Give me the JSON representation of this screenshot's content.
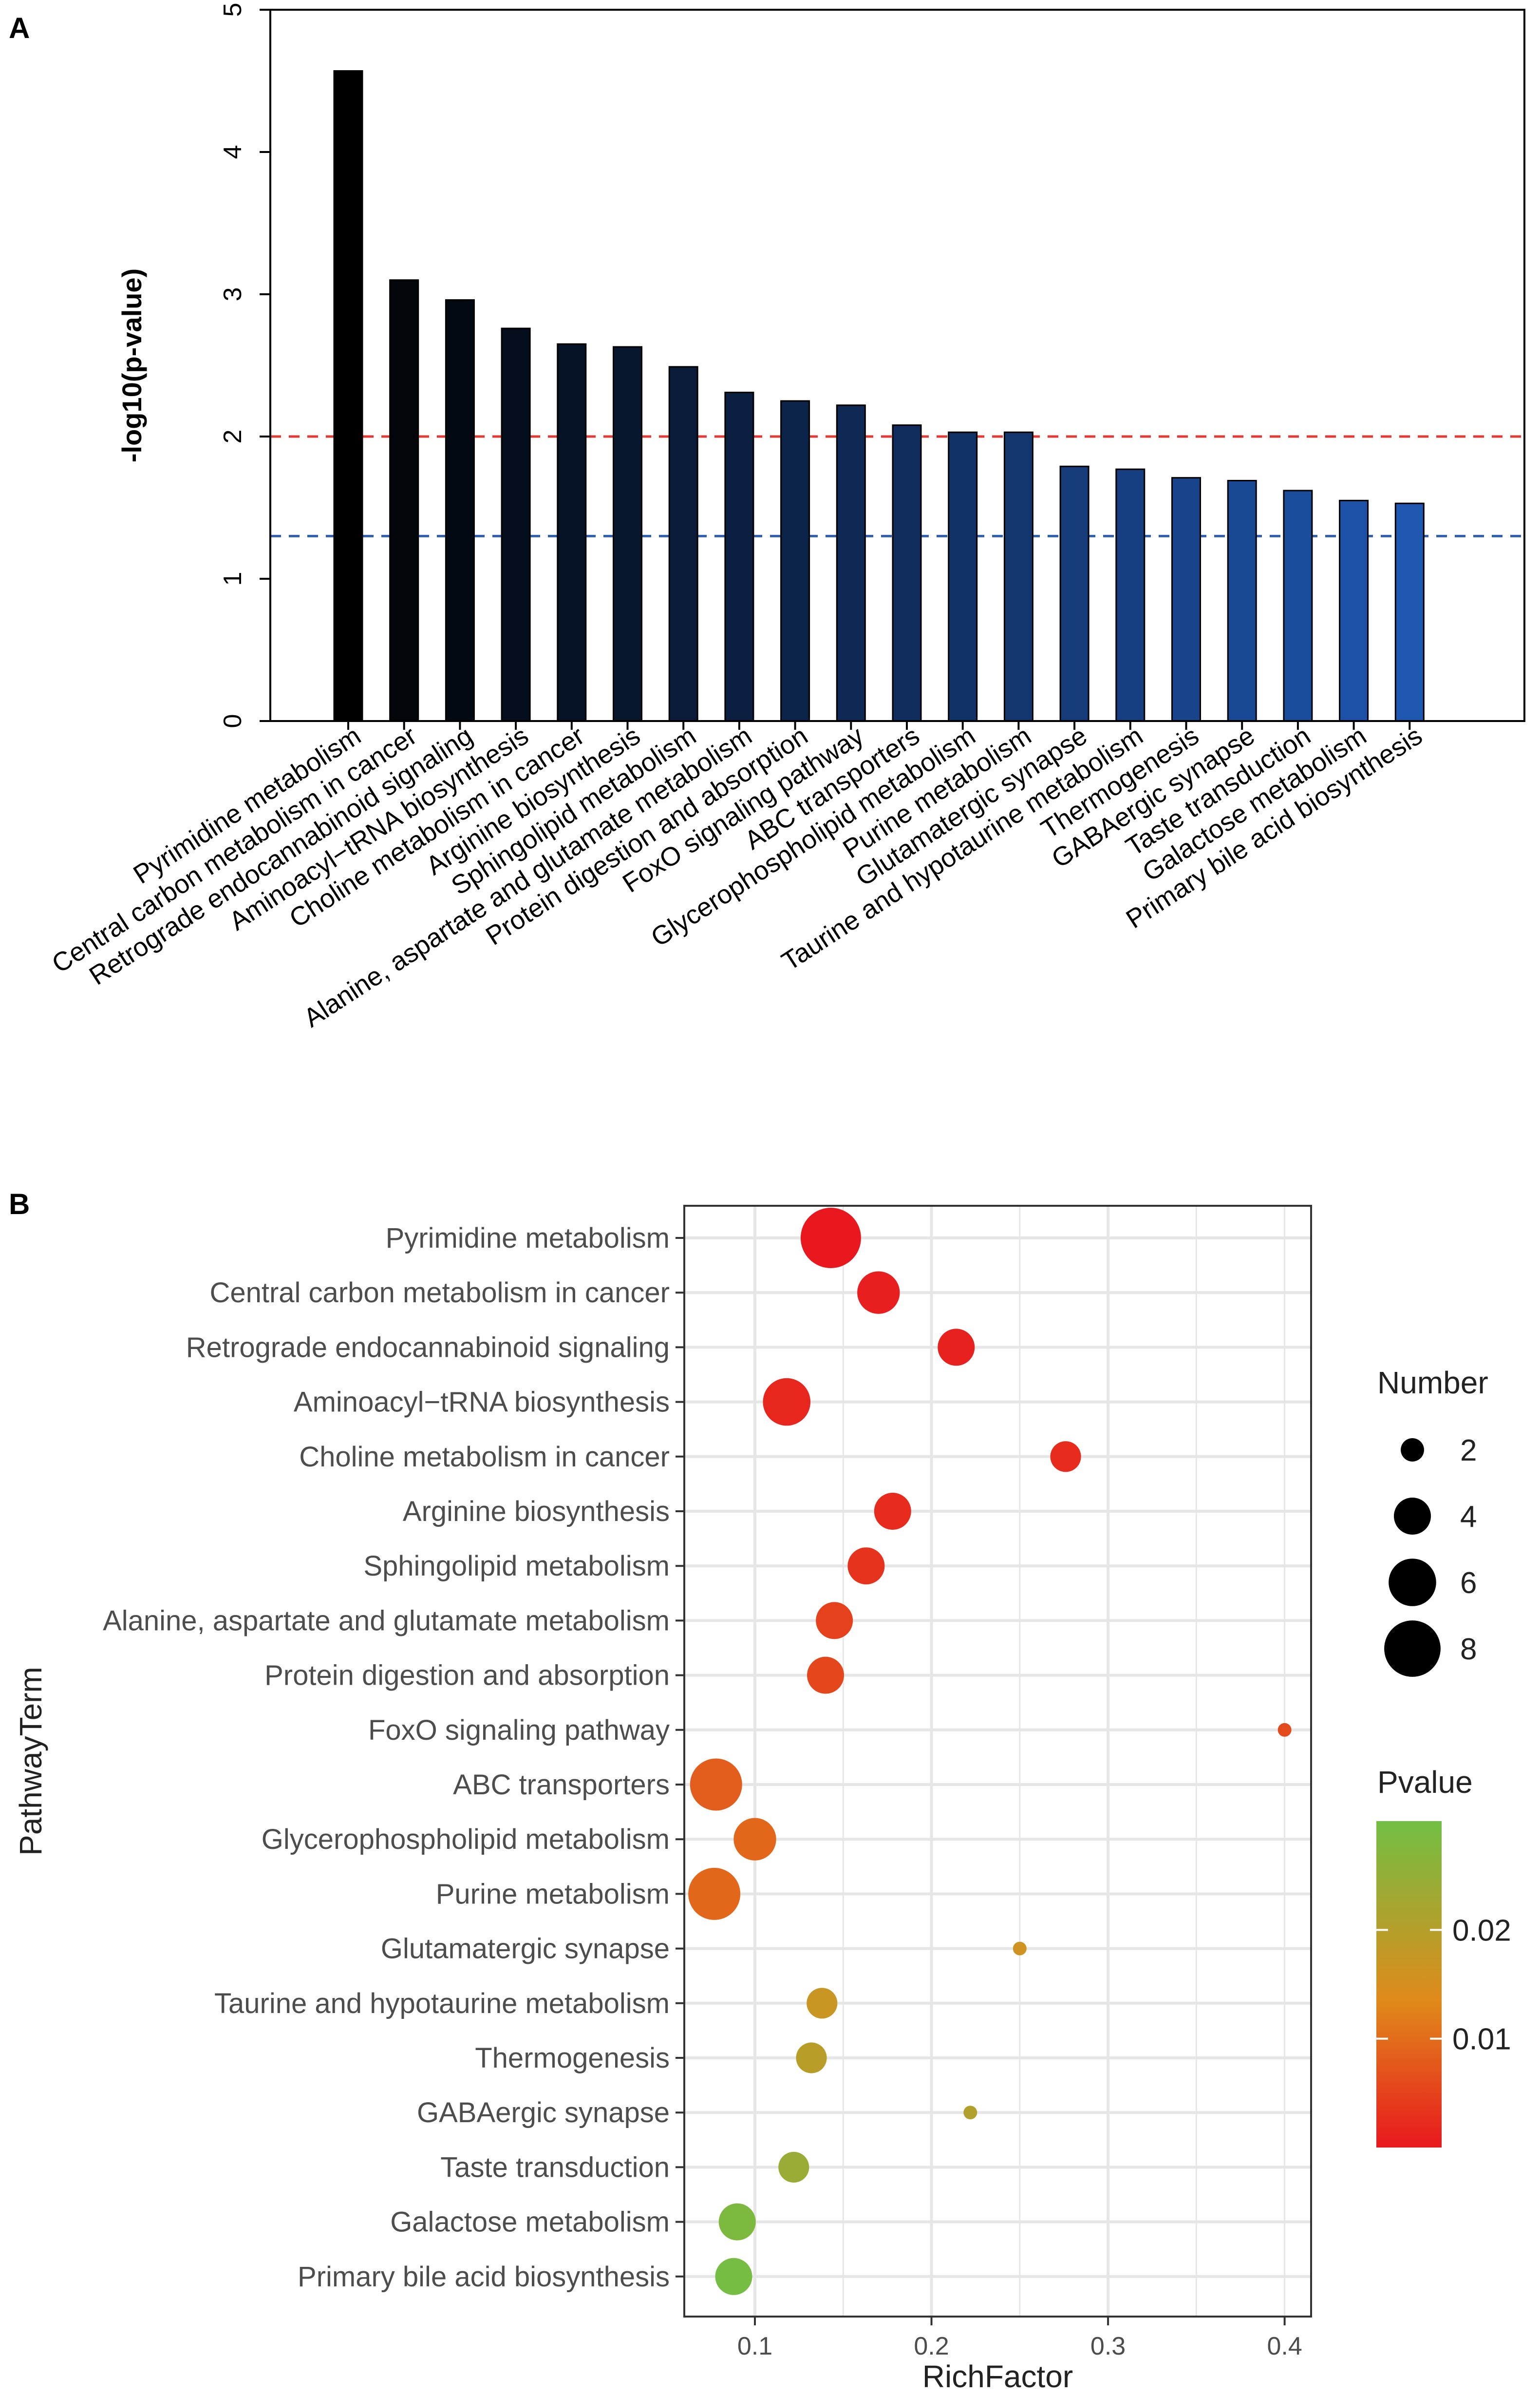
{
  "panels": {
    "a_label": "A",
    "b_label": "B"
  },
  "colors": {
    "bar_dark": "#000000",
    "bar_light": "#1e56b0",
    "ref_red": "#e53935",
    "ref_blue": "#2f5fb3",
    "grid": "#e6e6e6",
    "pvalue_low": "#e8181e",
    "pvalue_mid": "#e08a1a",
    "pvalue_high": "#72bf44"
  },
  "chart_data": [
    {
      "type": "bar",
      "title": "",
      "xlabel": "",
      "ylabel": "-log10(p-value)",
      "ylim": [
        0,
        5
      ],
      "yticks": [
        0,
        1,
        2,
        3,
        4,
        5
      ],
      "reference_lines": [
        {
          "y": 2.0,
          "color": "red",
          "style": "dashed"
        },
        {
          "y": 1.3,
          "color": "blue",
          "style": "dashed"
        }
      ],
      "categories": [
        "Pyrimidine metabolism",
        "Central carbon metabolism in cancer",
        "Retrograde endocannabinoid signaling",
        "Aminoacyl−tRNA biosynthesis",
        "Choline metabolism in cancer",
        "Arginine biosynthesis",
        "Sphingolipid metabolism",
        "Alanine, aspartate and glutamate metabolism",
        "Protein digestion and absorption",
        "FoxO signaling pathway",
        "ABC transporters",
        "Glycerophospholipid metabolism",
        "Purine metabolism",
        "Glutamatergic synapse",
        "Taurine and hypotaurine metabolism",
        "Thermogenesis",
        "GABAergic synapse",
        "Taste transduction",
        "Galactose metabolism",
        "Primary bile acid biosynthesis"
      ],
      "values": [
        4.57,
        3.1,
        2.96,
        2.76,
        2.65,
        2.63,
        2.49,
        2.31,
        2.25,
        2.22,
        2.08,
        2.03,
        2.03,
        1.79,
        1.77,
        1.71,
        1.69,
        1.62,
        1.55,
        1.53
      ]
    },
    {
      "type": "scatter",
      "title": "",
      "xlabel": "RichFactor",
      "ylabel": "PathwayTerm",
      "xlim": [
        0.06,
        0.415
      ],
      "xticks": [
        0.1,
        0.2,
        0.3,
        0.4
      ],
      "xtick_labels": [
        "0.1",
        "0.2",
        "0.3",
        "0.4"
      ],
      "categories": [
        "Pyrimidine metabolism",
        "Central carbon metabolism in cancer",
        "Retrograde endocannabinoid signaling",
        "Aminoacyl−tRNA biosynthesis",
        "Choline metabolism in cancer",
        "Arginine biosynthesis",
        "Sphingolipid metabolism",
        "Alanine, aspartate and glutamate metabolism",
        "Protein digestion and absorption",
        "FoxO signaling pathway",
        "ABC transporters",
        "Glycerophospholipid metabolism",
        "Purine metabolism",
        "Glutamatergic synapse",
        "Taurine and hypotaurine metabolism",
        "Thermogenesis",
        "GABAergic synapse",
        "Taste transduction",
        "Galactose metabolism",
        "Primary bile acid biosynthesis"
      ],
      "rich_factor": [
        0.143,
        0.17,
        0.214,
        0.118,
        0.276,
        0.178,
        0.163,
        0.145,
        0.14,
        0.4,
        0.078,
        0.1,
        0.077,
        0.25,
        0.138,
        0.132,
        0.222,
        0.122,
        0.09,
        0.088
      ],
      "number": [
        9,
        5,
        4,
        6,
        3,
        4,
        4,
        4,
        4,
        1,
        7,
        5,
        7,
        1,
        3,
        3,
        1,
        3,
        4,
        4
      ],
      "pvalue": [
        3e-05,
        0.0008,
        0.0011,
        0.0017,
        0.0022,
        0.0023,
        0.0032,
        0.0049,
        0.0056,
        0.006,
        0.0083,
        0.0093,
        0.0093,
        0.0162,
        0.017,
        0.0195,
        0.0204,
        0.024,
        0.0282,
        0.0295
      ],
      "legend": {
        "size_title": "Number",
        "size_values": [
          2,
          4,
          6,
          8
        ],
        "color_title": "Pvalue",
        "color_ticks": [
          0.01,
          0.02
        ],
        "color_tick_labels": [
          "0.01",
          "0.02"
        ],
        "color_range": [
          0.0,
          0.03
        ]
      }
    }
  ]
}
